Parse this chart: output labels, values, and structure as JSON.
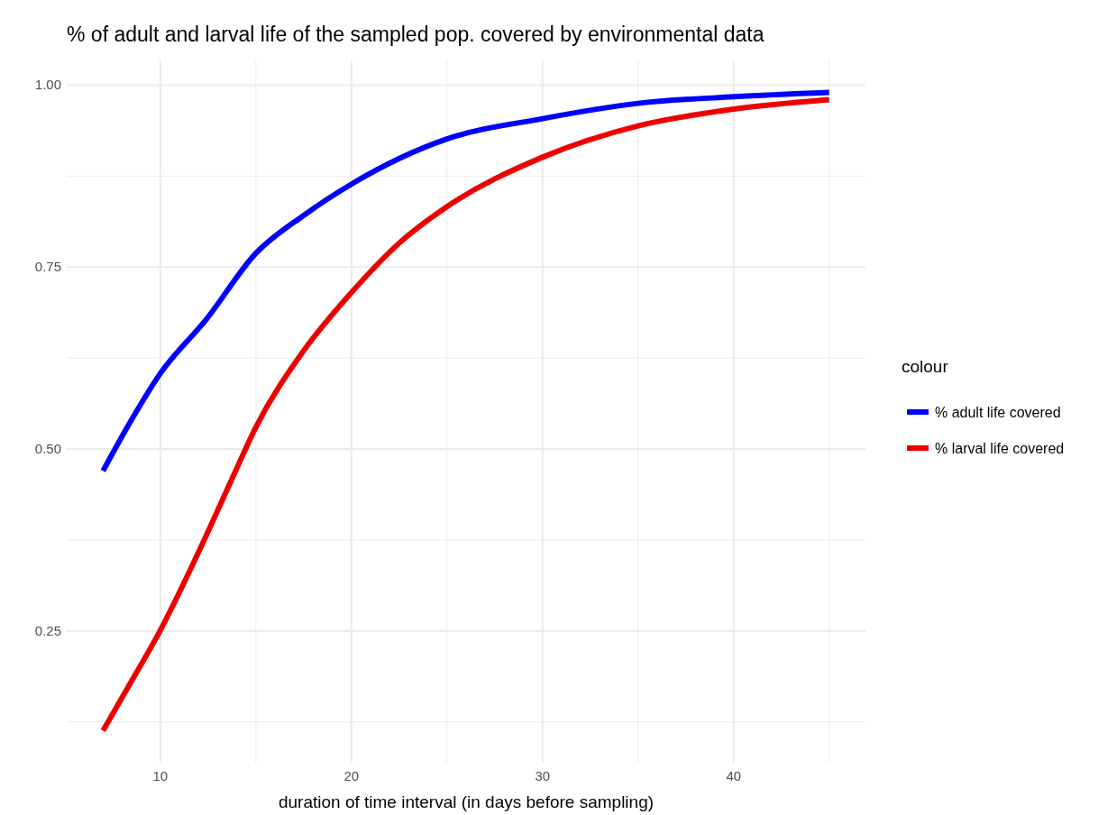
{
  "chart_data": {
    "type": "line",
    "title": "% of adult and larval life of the sampled pop. covered by environmental data",
    "xlabel": "duration of time interval (in days before sampling)",
    "legend_title": "colour",
    "legend": "right",
    "grid": true,
    "line_style": "solid",
    "marker": "none",
    "xlim": [
      5.1,
      46.9
    ],
    "xticks": [
      10,
      {
        "value": 15,
        "label": null
      },
      20,
      {
        "value": 25,
        "label": null
      },
      30,
      {
        "value": 35,
        "label": null
      },
      40,
      {
        "value": 45,
        "label": null
      }
    ],
    "ylim": [
      0.069,
      1.034
    ],
    "yticks": [
      {
        "value": 0.125,
        "label": null
      },
      {
        "value": 0.25,
        "label": "0.25"
      },
      {
        "value": 0.375,
        "label": null
      },
      {
        "value": 0.5,
        "label": "0.50"
      },
      {
        "value": 0.625,
        "label": null
      },
      {
        "value": 0.75,
        "label": "0.75"
      },
      {
        "value": 0.875,
        "label": null
      },
      {
        "value": 1,
        "label": "1.00"
      }
    ],
    "series": [
      {
        "name": "% adult life covered",
        "color": "#0000ff",
        "x": [
          7,
          8.4,
          10,
          12.4,
          15,
          17.5,
          20,
          25,
          30,
          35,
          40,
          45
        ],
        "values": [
          0.47,
          0.536,
          0.604,
          0.678,
          0.769,
          0.821,
          0.864,
          0.926,
          0.954,
          0.975,
          0.984,
          0.99
        ]
      },
      {
        "name": "% larval life covered",
        "color": "#ee0000",
        "x": [
          7,
          8.4,
          10,
          12.4,
          13.8,
          15,
          17.5,
          20,
          22.5,
          25,
          30,
          35,
          40,
          45
        ],
        "values": [
          0.113,
          0.177,
          0.251,
          0.381,
          0.462,
          0.53,
          0.635,
          0.715,
          0.783,
          0.833,
          0.901,
          0.944,
          0.967,
          0.98
        ]
      }
    ]
  }
}
